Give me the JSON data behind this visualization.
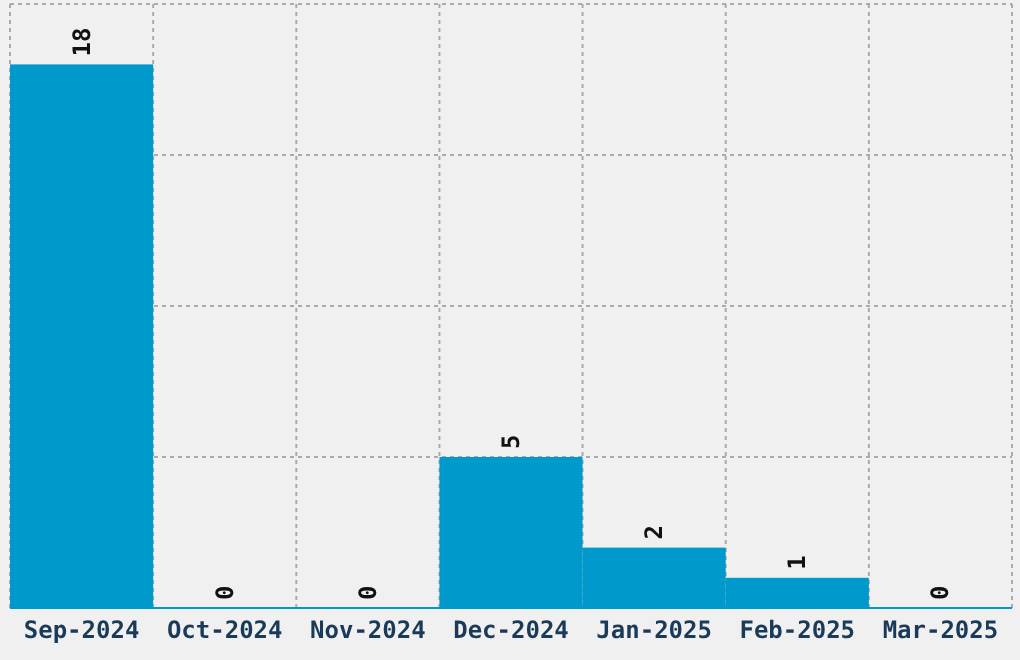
{
  "chart_data": {
    "type": "bar",
    "categories": [
      "Sep-2024",
      "Oct-2024",
      "Nov-2024",
      "Dec-2024",
      "Jan-2025",
      "Feb-2025",
      "Mar-2025"
    ],
    "values": [
      18,
      0,
      0,
      5,
      2,
      1,
      0
    ],
    "color": "#0099cc",
    "ylim": [
      0,
      20
    ],
    "yticks": [
      {
        "value": 0,
        "label": null
      },
      {
        "value": 5,
        "label": null
      },
      {
        "value": 10,
        "label": null
      },
      {
        "value": 15,
        "label": null
      },
      {
        "value": 20,
        "label": null
      }
    ],
    "grid": true,
    "data_labels": true,
    "tick_labels": "x"
  }
}
